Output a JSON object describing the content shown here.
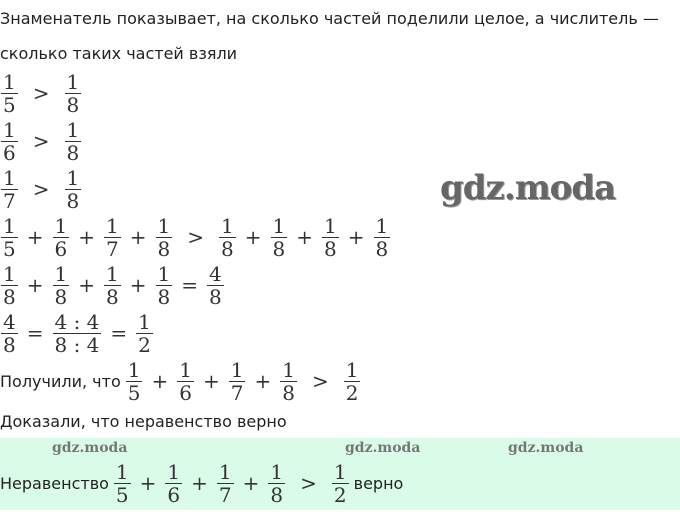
{
  "intro_line1": "Знаменатель показывает, на сколько частей поделили целое, а числитель —",
  "intro_line2": "сколько таких частей взяли",
  "rows": [
    {
      "tokens": [
        {
          "n": "1",
          "d": "5"
        },
        ">",
        {
          "n": "1",
          "d": "8"
        }
      ]
    },
    {
      "tokens": [
        {
          "n": "1",
          "d": "6"
        },
        ">",
        {
          "n": "1",
          "d": "8"
        }
      ]
    },
    {
      "tokens": [
        {
          "n": "1",
          "d": "7"
        },
        ">",
        {
          "n": "1",
          "d": "8"
        }
      ]
    },
    {
      "tokens": [
        {
          "n": "1",
          "d": "5"
        },
        "+",
        {
          "n": "1",
          "d": "6"
        },
        "+",
        {
          "n": "1",
          "d": "7"
        },
        "+",
        {
          "n": "1",
          "d": "8"
        },
        ">",
        {
          "n": "1",
          "d": "8"
        },
        "+",
        {
          "n": "1",
          "d": "8"
        },
        "+",
        {
          "n": "1",
          "d": "8"
        },
        "+",
        {
          "n": "1",
          "d": "8"
        }
      ]
    },
    {
      "tokens": [
        {
          "n": "1",
          "d": "8"
        },
        "+",
        {
          "n": "1",
          "d": "8"
        },
        "+",
        {
          "n": "1",
          "d": "8"
        },
        "+",
        {
          "n": "1",
          "d": "8"
        },
        "=",
        {
          "n": "4",
          "d": "8"
        }
      ]
    },
    {
      "tokens": [
        {
          "n": "4",
          "d": "8"
        },
        "=",
        {
          "n": "4 : 4",
          "d": "8 : 4"
        },
        "=",
        {
          "n": "1",
          "d": "2"
        }
      ]
    },
    {
      "label": "Получили, что",
      "tokens": [
        {
          "n": "1",
          "d": "5"
        },
        "+",
        {
          "n": "1",
          "d": "6"
        },
        "+",
        {
          "n": "1",
          "d": "7"
        },
        "+",
        {
          "n": "1",
          "d": "8"
        },
        ">",
        {
          "n": "1",
          "d": "2"
        }
      ]
    }
  ],
  "proved_text": "Доказали, что неравенство верно",
  "answer": {
    "label": "Неравенство",
    "tokens": [
      {
        "n": "1",
        "d": "5"
      },
      "+",
      {
        "n": "1",
        "d": "6"
      },
      "+",
      {
        "n": "1",
        "d": "7"
      },
      "+",
      {
        "n": "1",
        "d": "8"
      },
      ">",
      {
        "n": "1",
        "d": "2"
      }
    ],
    "suffix": "верно",
    "background": "#d9fbe8"
  },
  "watermarks": [
    "gdz.moda",
    "gdz.moda",
    "gdz.moda",
    "gdz.moda"
  ]
}
